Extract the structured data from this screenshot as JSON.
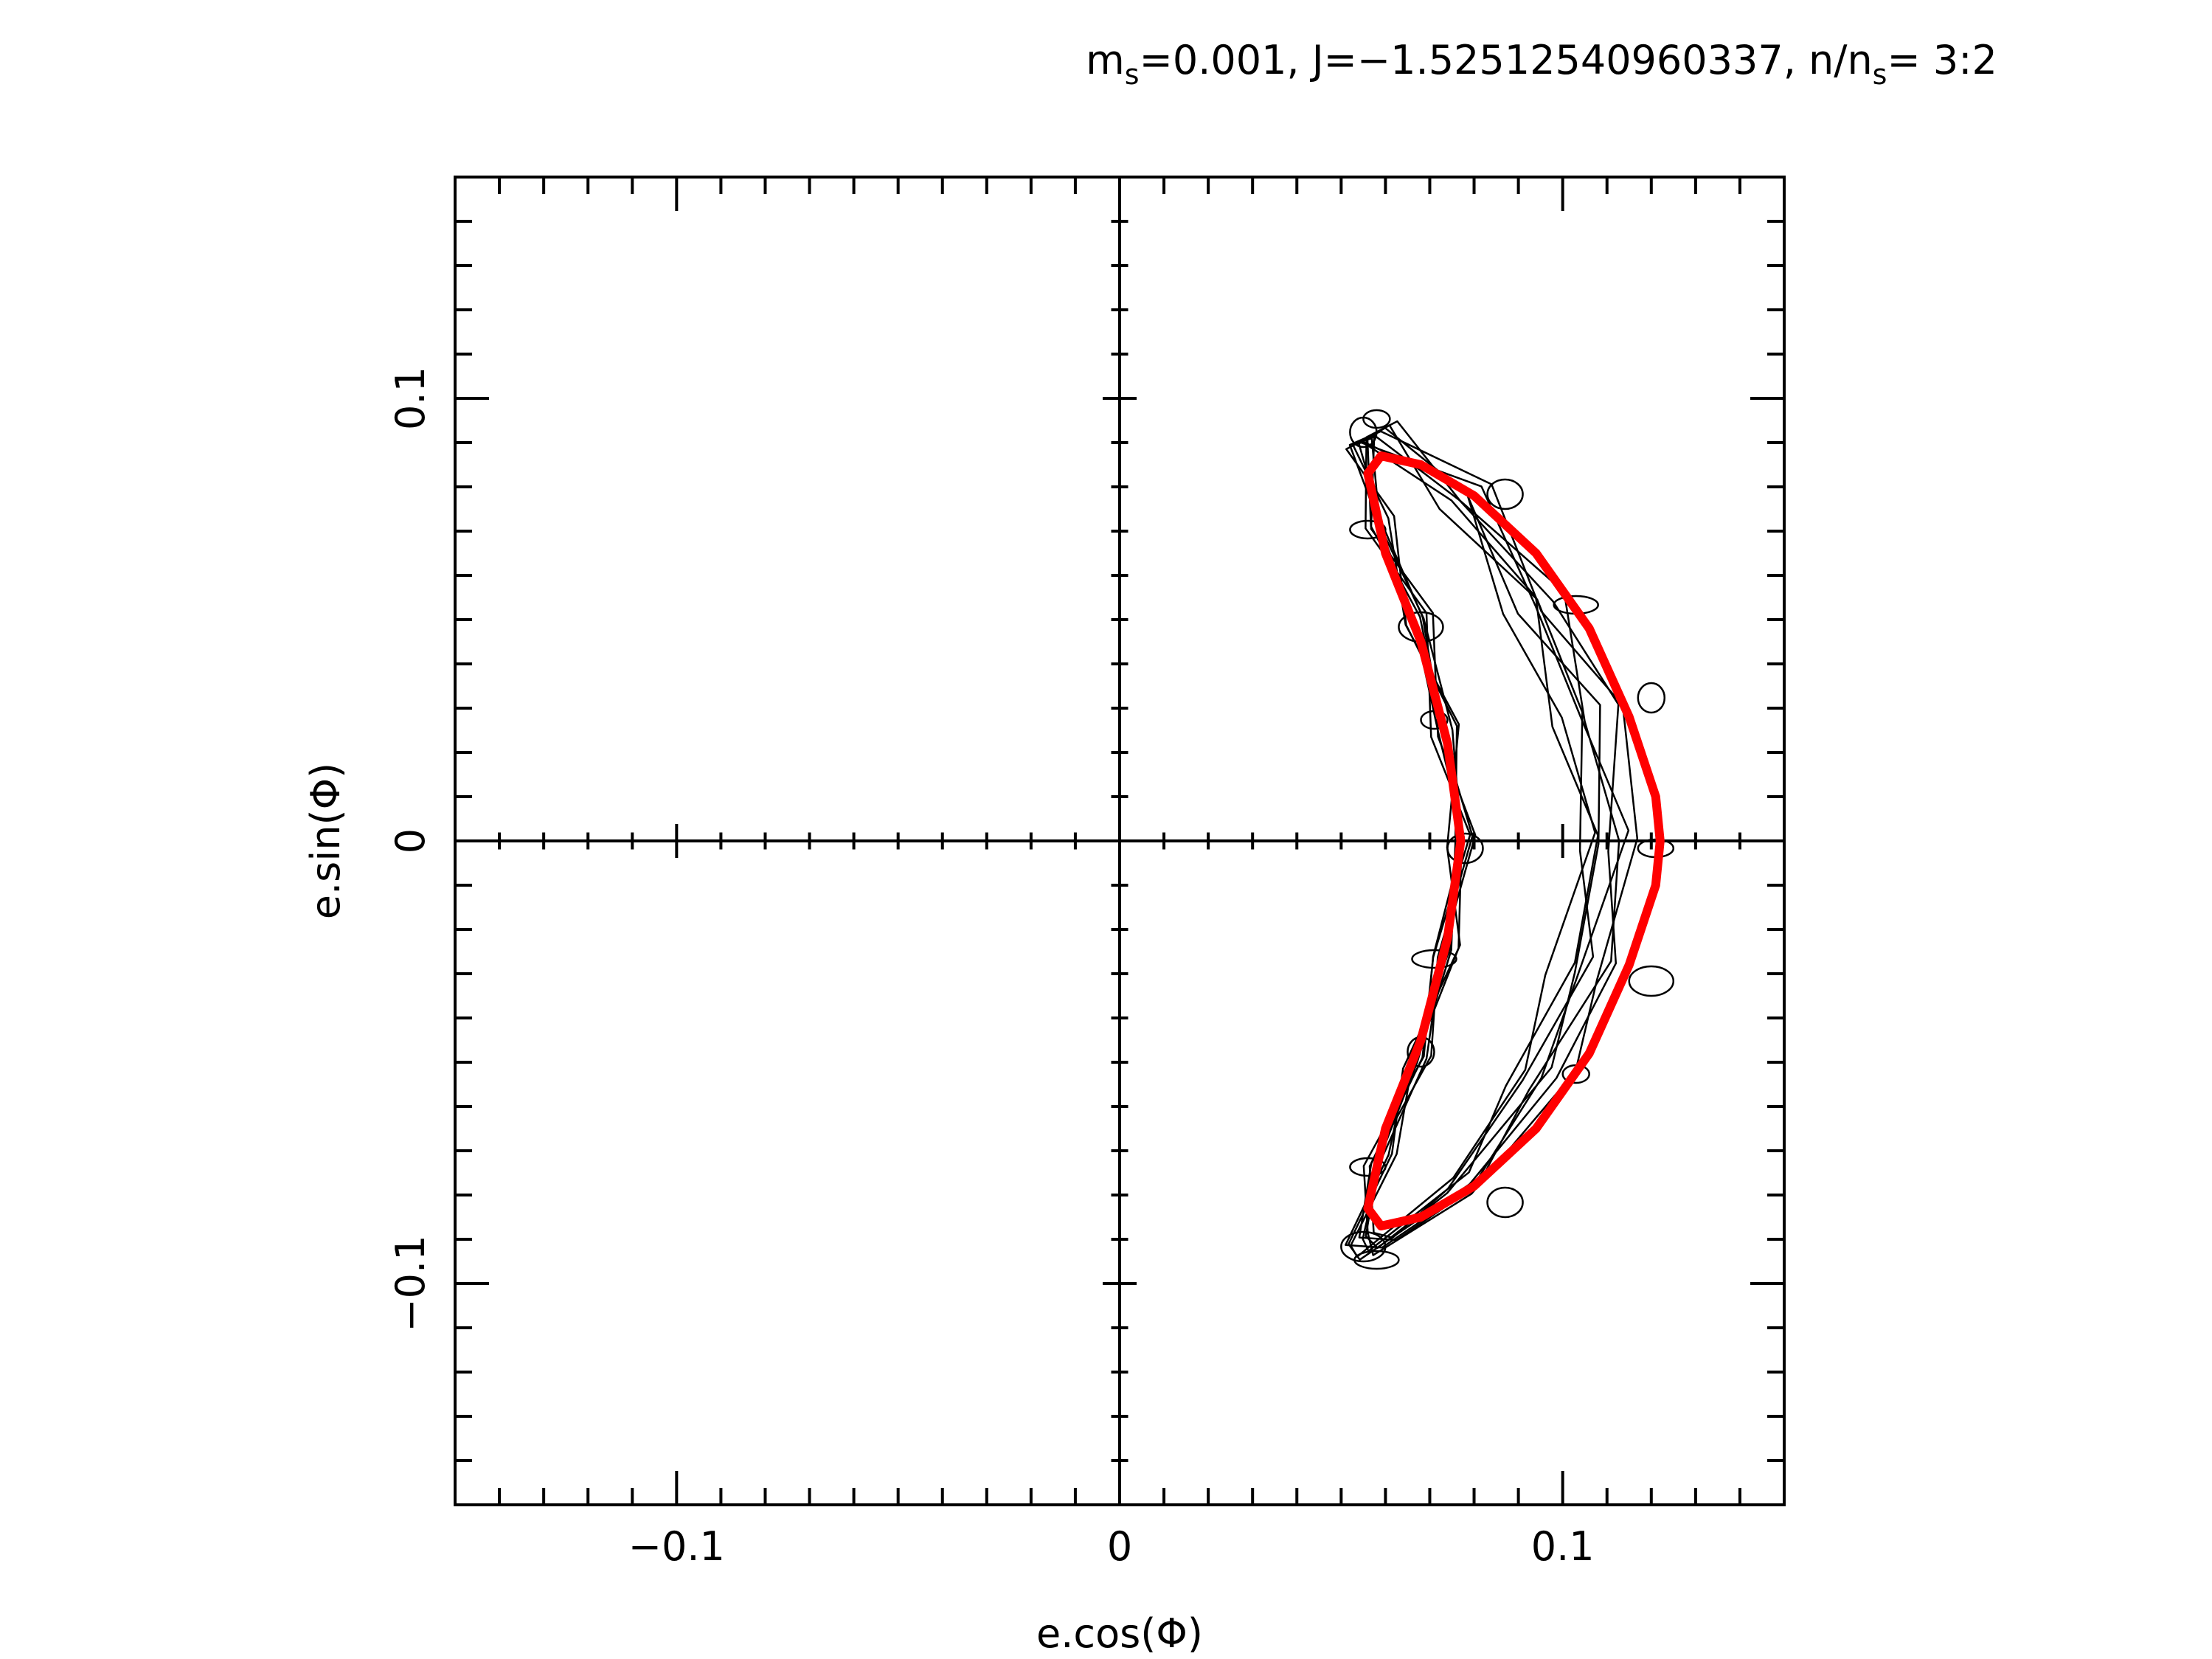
{
  "chart_data": {
    "type": "line",
    "title": {
      "m_symbol": "m",
      "m_sub": "s",
      "m_value": "=0.001, J=−1.52512540960337, n/n",
      "n_sub": "s",
      "ratio": "= 3:2"
    },
    "xlabel": "e.cos(Φ)",
    "ylabel": "e.sin(Φ)",
    "xlim": [
      -0.15,
      0.15
    ],
    "ylim": [
      -0.15,
      0.15
    ],
    "x_tick_labels": [
      {
        "value": -0.1,
        "label": "−0.1"
      },
      {
        "value": 0,
        "label": "0"
      },
      {
        "value": 0.1,
        "label": "0.1"
      }
    ],
    "y_tick_labels": [
      {
        "value": -0.1,
        "label": "−0.1"
      },
      {
        "value": 0,
        "label": "0"
      },
      {
        "value": 0.1,
        "label": "0.1"
      }
    ],
    "grid": false,
    "zero_axes": true,
    "series": [
      {
        "color": "#000000",
        "style": "thin loopy line",
        "shape": "crescent",
        "values_approx": {
          "inner_edge": [
            [
              0.053,
              0.09
            ],
            [
              0.058,
              0.072
            ],
            [
              0.066,
              0.05
            ],
            [
              0.073,
              0.025
            ],
            [
              0.076,
              0.0
            ],
            [
              0.073,
              -0.025
            ],
            [
              0.066,
              -0.05
            ],
            [
              0.058,
              -0.072
            ],
            [
              0.053,
              -0.09
            ]
          ],
          "outer_edge": [
            [
              0.06,
              0.093
            ],
            [
              0.085,
              0.08
            ],
            [
              0.105,
              0.055
            ],
            [
              0.118,
              0.03
            ],
            [
              0.123,
              0.0
            ],
            [
              0.118,
              -0.03
            ],
            [
              0.105,
              -0.055
            ],
            [
              0.085,
              -0.08
            ],
            [
              0.06,
              -0.093
            ]
          ]
        }
      },
      {
        "color": "#ff0000",
        "style": "thick smooth line",
        "shape": "crescent",
        "values_approx": [
          [
            0.056,
            0.083
          ],
          [
            0.059,
            0.087
          ],
          [
            0.068,
            0.085
          ],
          [
            0.08,
            0.078
          ],
          [
            0.094,
            0.065
          ],
          [
            0.106,
            0.048
          ],
          [
            0.115,
            0.028
          ],
          [
            0.121,
            0.01
          ],
          [
            0.122,
            0.0
          ],
          [
            0.121,
            -0.01
          ],
          [
            0.115,
            -0.028
          ],
          [
            0.106,
            -0.048
          ],
          [
            0.094,
            -0.065
          ],
          [
            0.08,
            -0.078
          ],
          [
            0.068,
            -0.085
          ],
          [
            0.059,
            -0.087
          ],
          [
            0.056,
            -0.083
          ],
          [
            0.06,
            -0.065
          ],
          [
            0.068,
            -0.045
          ],
          [
            0.074,
            -0.022
          ],
          [
            0.077,
            0.0
          ],
          [
            0.074,
            0.022
          ],
          [
            0.068,
            0.045
          ],
          [
            0.06,
            0.065
          ],
          [
            0.056,
            0.083
          ]
        ]
      }
    ]
  }
}
